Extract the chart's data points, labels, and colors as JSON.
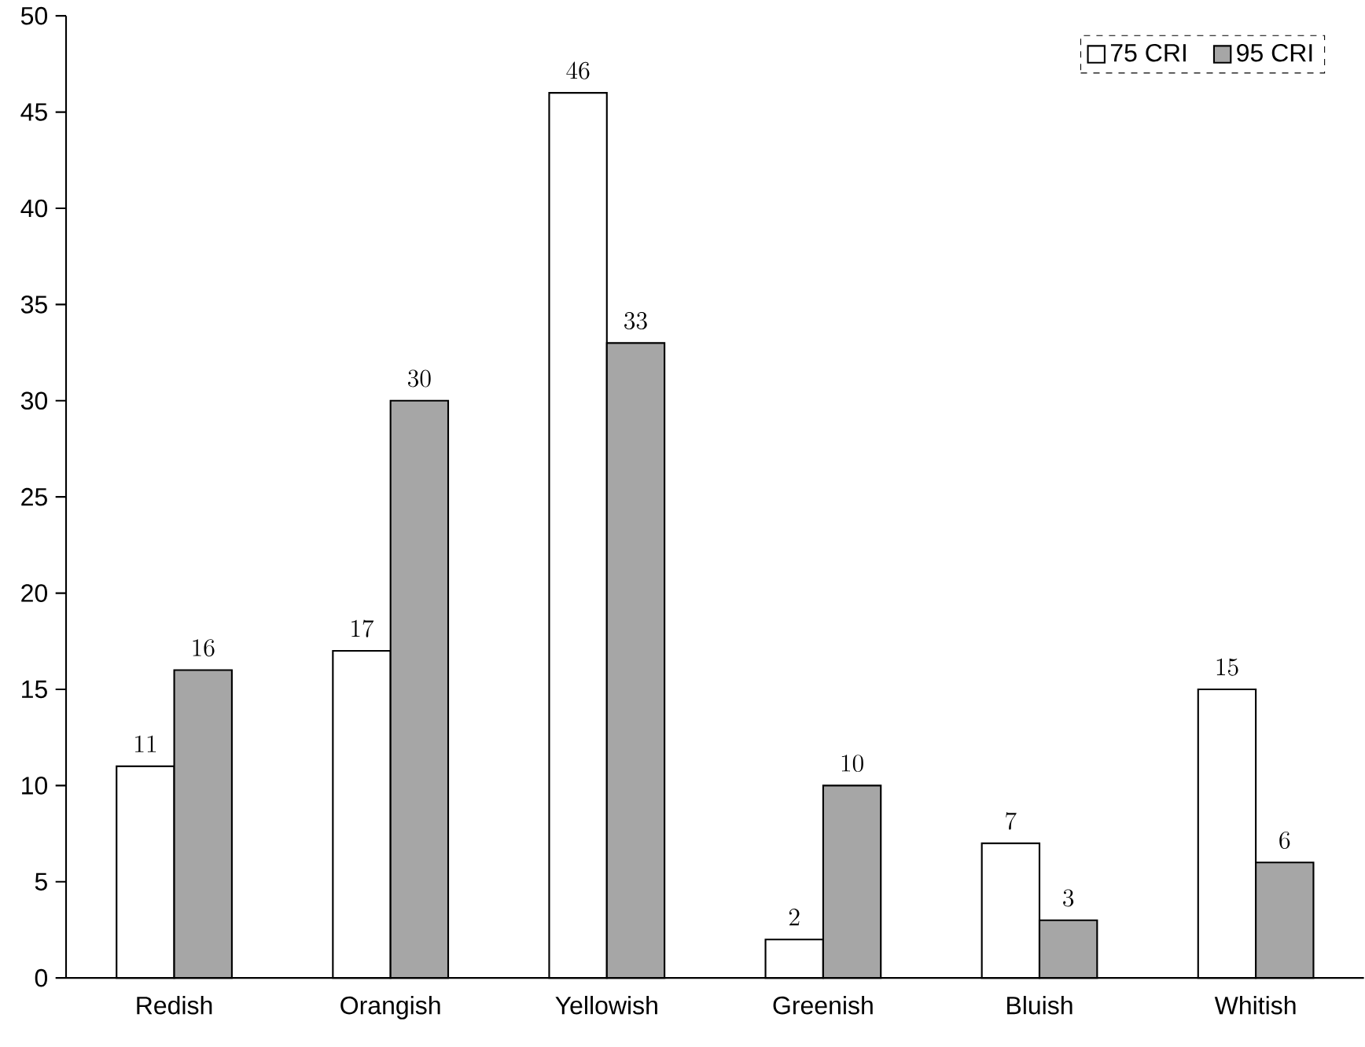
{
  "chart_data": {
    "type": "bar",
    "categories": [
      "Redish",
      "Orangish",
      "Yellowish",
      "Greenish",
      "Bluish",
      "Whitish"
    ],
    "series": [
      {
        "name": "75 CRI",
        "color": "#ffffff",
        "values": [
          11,
          17,
          46,
          2,
          7,
          15
        ]
      },
      {
        "name": "95 CRI",
        "color": "#a6a6a6",
        "values": [
          16,
          30,
          33,
          10,
          3,
          6
        ]
      }
    ],
    "ylim": [
      0,
      50
    ],
    "yticks": [
      0,
      5,
      10,
      15,
      20,
      25,
      30,
      35,
      40,
      45,
      50
    ],
    "grid": false,
    "legend": "top right",
    "data_labels": true
  }
}
